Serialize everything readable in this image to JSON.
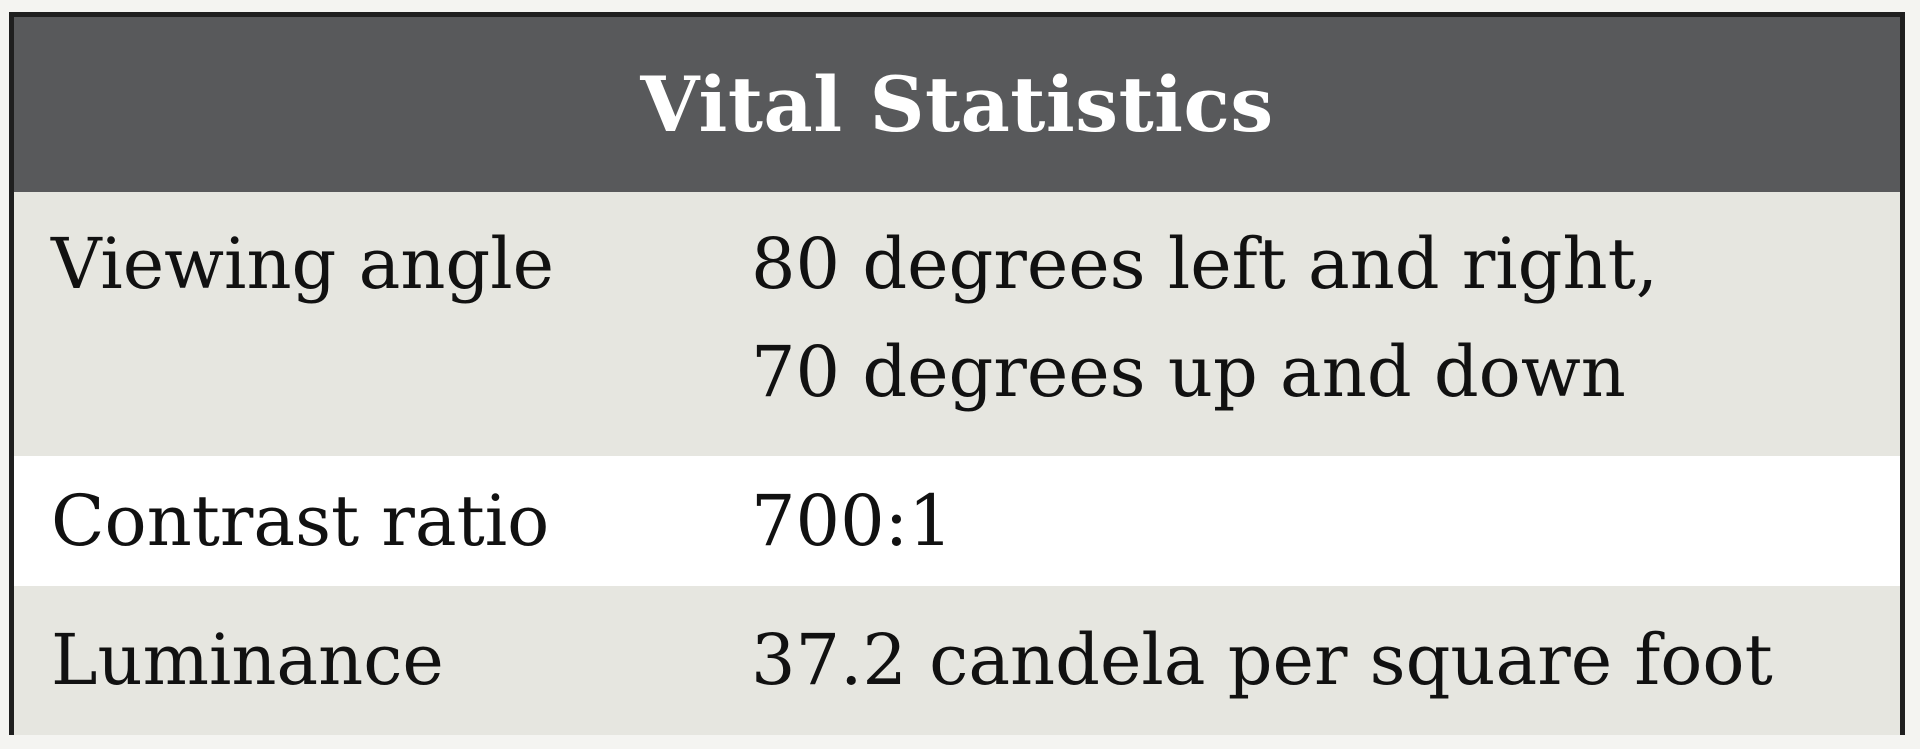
{
  "table": {
    "title": "Vital Statistics",
    "colors": {
      "header_bg": "#58595b",
      "shaded_row_bg": "#e6e6e0",
      "plain_row_bg": "#ffffff",
      "border": "#1f1f1f"
    },
    "rows": [
      {
        "label": "Viewing angle",
        "value_lines": [
          "80 degrees left and right,",
          "70 degrees up and down"
        ],
        "shaded": true
      },
      {
        "label": "Contrast ratio",
        "value_lines": [
          "700:1"
        ],
        "shaded": false
      },
      {
        "label": "Luminance",
        "value_lines": [
          "37.2 candela per square foot"
        ],
        "shaded": true
      }
    ]
  }
}
